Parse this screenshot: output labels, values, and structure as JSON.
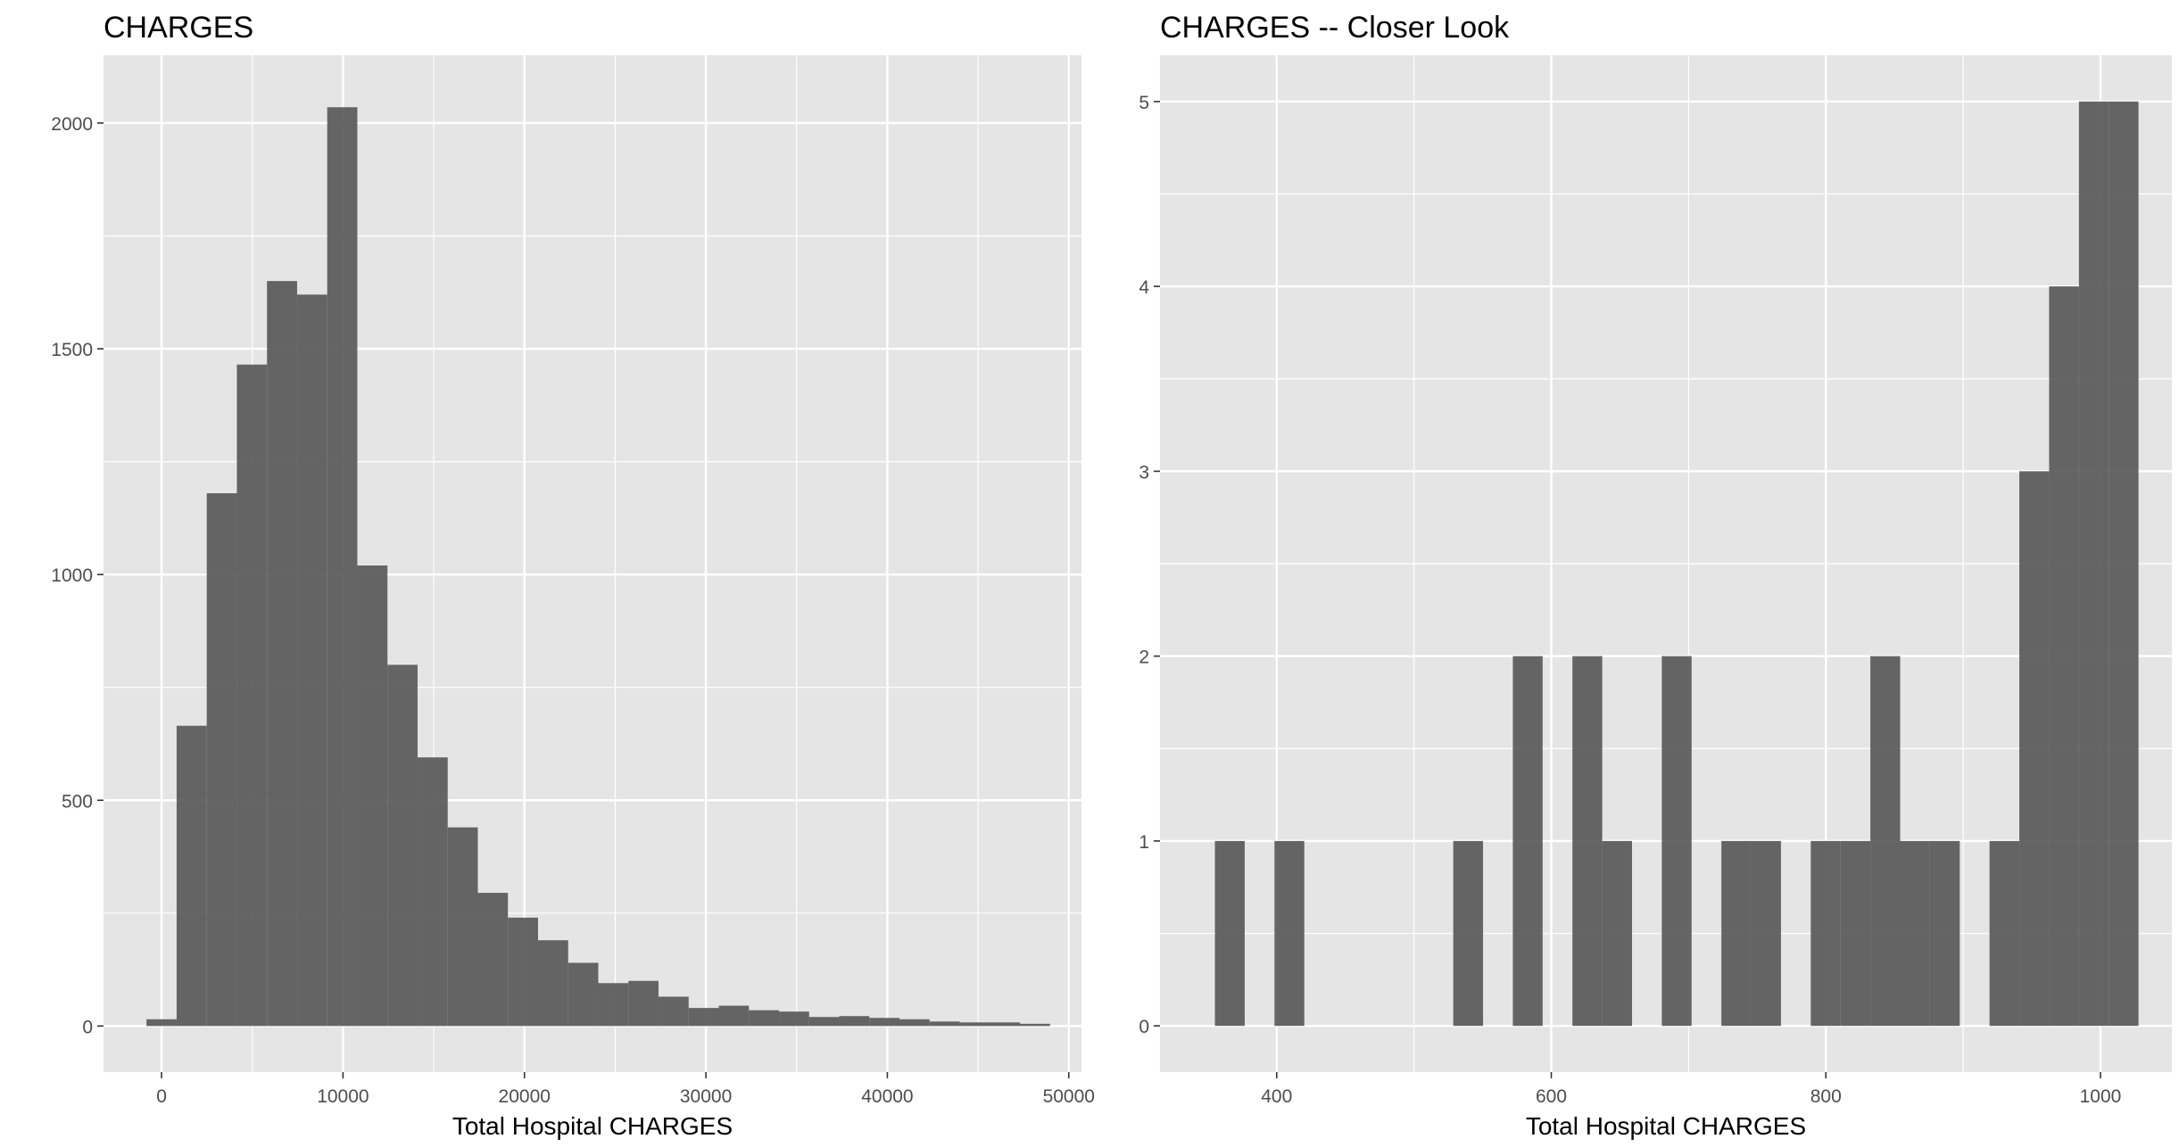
{
  "chart_data": [
    {
      "type": "bar",
      "histogram": true,
      "title": "CHARGES",
      "xlabel": "Total Hospital CHARGES",
      "ylabel": "",
      "xlim": [
        -3200,
        50700
      ],
      "ylim": [
        -102,
        2150
      ],
      "xticks": [
        0,
        10000,
        20000,
        30000,
        40000,
        50000
      ],
      "yticks": [
        0,
        500,
        1000,
        1500,
        2000
      ],
      "grid": true,
      "bin_width": 1660,
      "bin_start": -830,
      "values": [
        15,
        665,
        1180,
        1465,
        1650,
        1620,
        2035,
        1020,
        800,
        595,
        440,
        295,
        240,
        190,
        140,
        95,
        100,
        65,
        40,
        45,
        35,
        32,
        20,
        22,
        18,
        15,
        10,
        8,
        8,
        5
      ]
    },
    {
      "type": "bar",
      "histogram": true,
      "title": "CHARGES -- Closer Look",
      "xlabel": "Total Hospital CHARGES",
      "ylabel": "",
      "xlim": [
        315,
        1052
      ],
      "ylim": [
        -0.25,
        5.25
      ],
      "xticks": [
        400,
        600,
        800,
        1000
      ],
      "yticks": [
        0,
        1,
        2,
        3,
        4,
        5
      ],
      "grid": true,
      "bin_width": 21.7,
      "bin_start": 355,
      "values": [
        1,
        0,
        1,
        0,
        0,
        0,
        0,
        0,
        1,
        0,
        2,
        0,
        2,
        1,
        0,
        2,
        0,
        1,
        1,
        0,
        1,
        1,
        2,
        1,
        1,
        0,
        1,
        3,
        4,
        5,
        5
      ]
    }
  ],
  "colors": {
    "panel_background": "#e5e5e5",
    "grid_major": "#ffffff",
    "bar_fill": "#595959",
    "text": "#000000",
    "tick_text": "#4d4d4d"
  }
}
